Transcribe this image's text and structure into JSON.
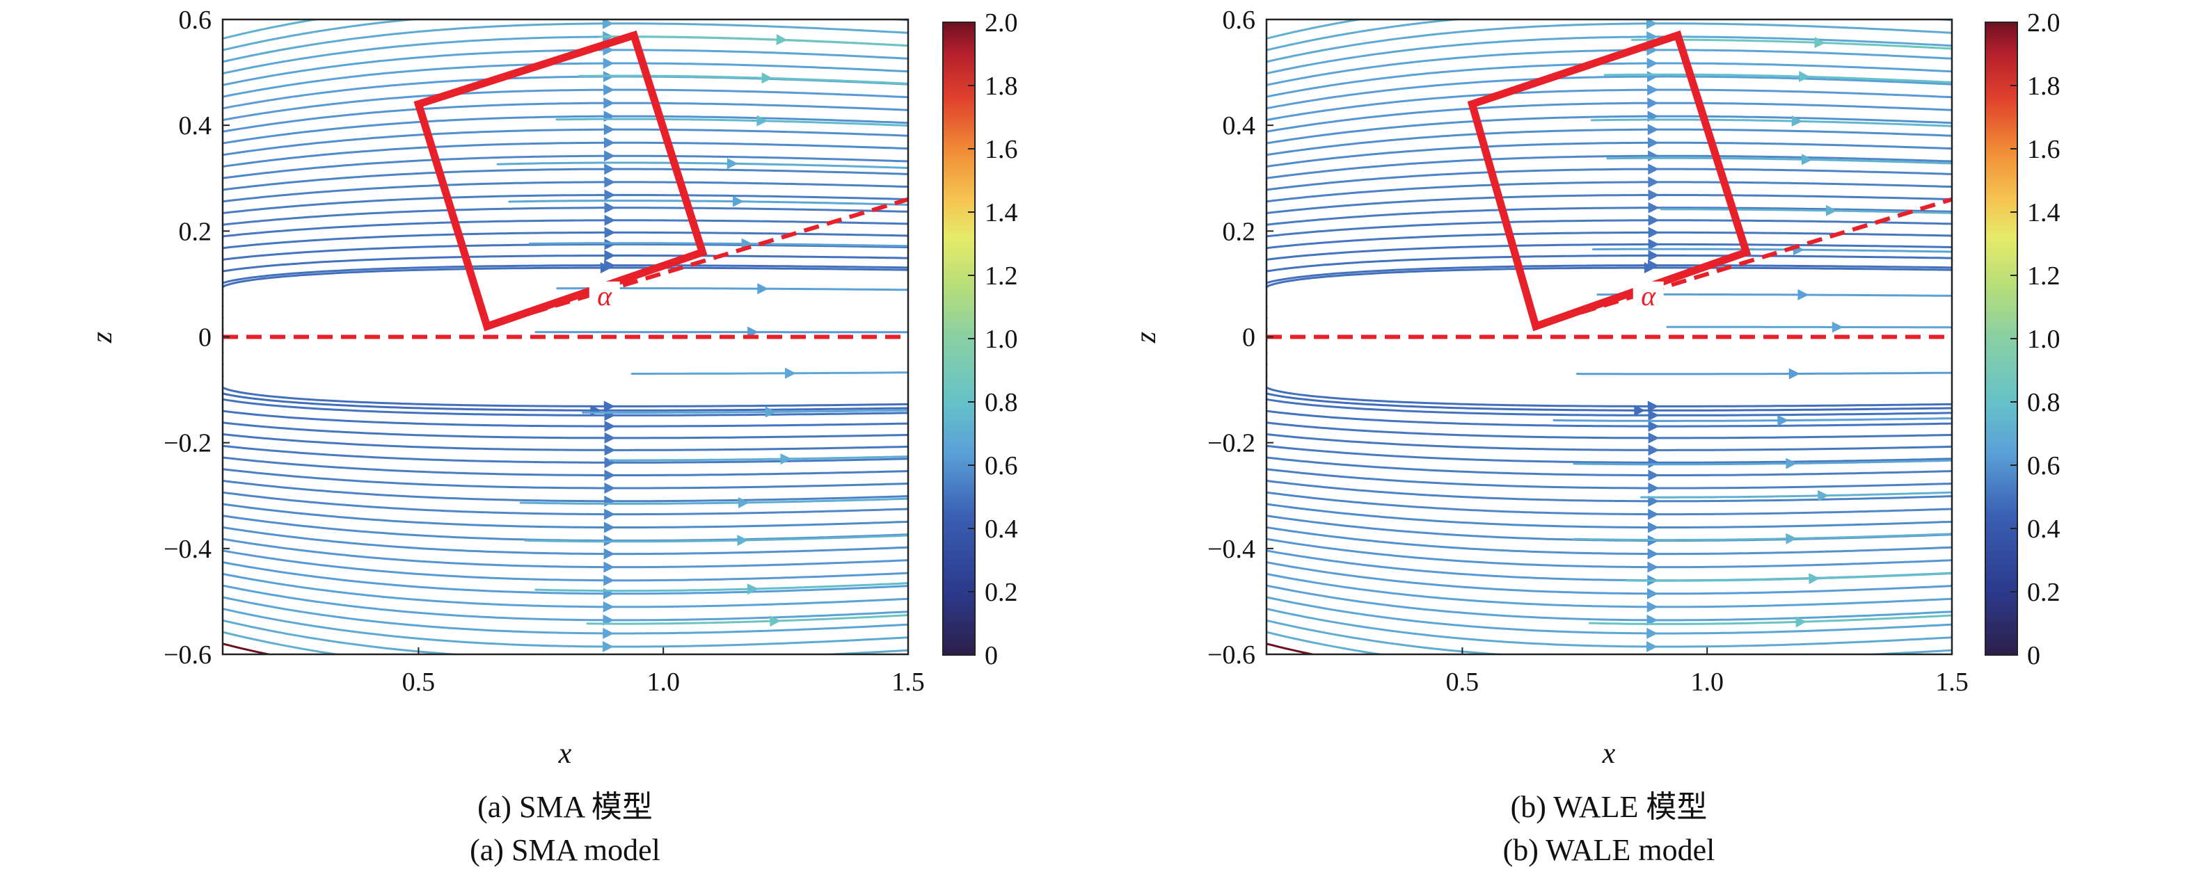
{
  "colors": {
    "annotation_red": "#e8202a",
    "stream_low": "#2d2f8c",
    "stream_high": "#8b1a1a"
  },
  "colorbar": {
    "colormap": "Spectral_r",
    "min": 0,
    "max": 2.0,
    "ticks": [
      "0",
      "0.2",
      "0.4",
      "0.6",
      "0.8",
      "1.0",
      "1.2",
      "1.4",
      "1.6",
      "1.8",
      "2.0"
    ]
  },
  "chart_data": [
    {
      "type": "streamline",
      "id": "a",
      "xlabel": "x",
      "ylabel": "z",
      "xlim": [
        0.1,
        1.5
      ],
      "ylim": [
        -0.6,
        0.6
      ],
      "x_ticks": [
        "0.5",
        "1.0",
        "1.5"
      ],
      "y_ticks": [
        "−0.6",
        "−0.4",
        "−0.2",
        "0",
        "0.2",
        "0.4",
        "0.6"
      ],
      "caption_zh": "(a) SMA 模型",
      "caption_en": "(a) SMA model",
      "annotation_label": "α",
      "box_corners": [
        [
          0.5,
          0.44
        ],
        [
          0.94,
          0.57
        ],
        [
          1.08,
          0.16
        ],
        [
          0.64,
          0.02
        ]
      ],
      "centerline_z": 0,
      "incline_line": {
        "from": [
          0.64,
          0.02
        ],
        "to": [
          1.5,
          0.26
        ]
      }
    },
    {
      "type": "streamline",
      "id": "b",
      "xlabel": "x",
      "ylabel": "z",
      "xlim": [
        0.1,
        1.5
      ],
      "ylim": [
        -0.6,
        0.6
      ],
      "x_ticks": [
        "0.5",
        "1.0",
        "1.5"
      ],
      "y_ticks": [
        "−0.6",
        "−0.4",
        "−0.2",
        "0",
        "0.2",
        "0.4",
        "0.6"
      ],
      "caption_zh": "(b) WALE 模型",
      "caption_en": "(b) WALE model",
      "annotation_label": "α",
      "box_corners": [
        [
          0.52,
          0.44
        ],
        [
          0.94,
          0.57
        ],
        [
          1.08,
          0.16
        ],
        [
          0.65,
          0.02
        ]
      ],
      "centerline_z": 0,
      "incline_line": {
        "from": [
          0.65,
          0.02
        ],
        "to": [
          1.5,
          0.26
        ]
      }
    }
  ]
}
